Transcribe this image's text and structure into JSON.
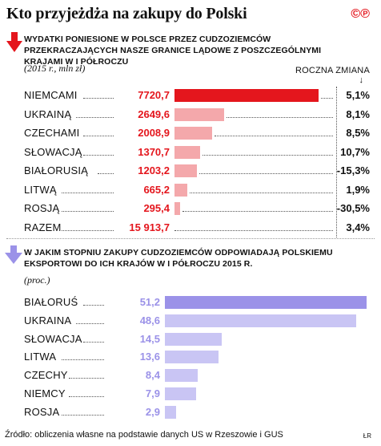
{
  "title": "Kto przyjeżdża na zakupy do Polski",
  "logo": "©℗",
  "source": "Źródło: obliczenia własne na podstawie danych US w Rzeszowie i GUS",
  "author": "ŁR",
  "colors": {
    "red": "#e4161d",
    "pink": "#f4a8ab",
    "purple": "#9b92e8",
    "lavender": "#c9c5f4"
  },
  "chart_data": [
    {
      "type": "bar",
      "title": "Wydatki poniesione w Polsce przez cudzoziemców przekraczających nasze granice lądowe z poszczególnymi krajami w I półroczu",
      "unit_label": "(2015 r., mln zł)",
      "change_header": "ROCZNA ZMIANA",
      "categories": [
        "NIEMCAMI",
        "UKRAINĄ",
        "CZECHAMI",
        "SŁOWACJĄ",
        "BIAŁORUSIĄ",
        "LITWĄ",
        "ROSJĄ",
        "RAZEM"
      ],
      "value_labels": [
        "7720,7",
        "2649,6",
        "2008,9",
        "1370,7",
        "1203,2",
        "665,2",
        "295,4",
        "15 913,7"
      ],
      "values": [
        7720.7,
        2649.6,
        2008.9,
        1370.7,
        1203.2,
        665.2,
        295.4,
        15913.7
      ],
      "has_bar": [
        true,
        true,
        true,
        true,
        true,
        true,
        true,
        false
      ],
      "change_labels": [
        "5,1%",
        "8,1%",
        "8,5%",
        "10,7%",
        "-15,3%",
        "1,9%",
        "-30,5%",
        "3,4%"
      ],
      "changes": [
        5.1,
        8.1,
        8.5,
        10.7,
        -15.3,
        1.9,
        -30.5,
        3.4
      ],
      "xlim": [
        0,
        7720.7
      ]
    },
    {
      "type": "bar",
      "title": "W jakim stopniu zakupy cudzoziemców odpowiadają polskiemu eksportowi do ich krajów w I półroczu 2015 r.",
      "unit_label": "(proc.)",
      "categories": [
        "BIAŁORUŚ",
        "UKRAINA",
        "SŁOWACJA",
        "LITWA",
        "CZECHY",
        "NIEMCY",
        "ROSJA"
      ],
      "value_labels": [
        "51,2",
        "48,6",
        "14,5",
        "13,6",
        "8,4",
        "7,9",
        "2,9"
      ],
      "values": [
        51.2,
        48.6,
        14.5,
        13.6,
        8.4,
        7.9,
        2.9
      ],
      "xlim": [
        0,
        51.2
      ]
    }
  ]
}
